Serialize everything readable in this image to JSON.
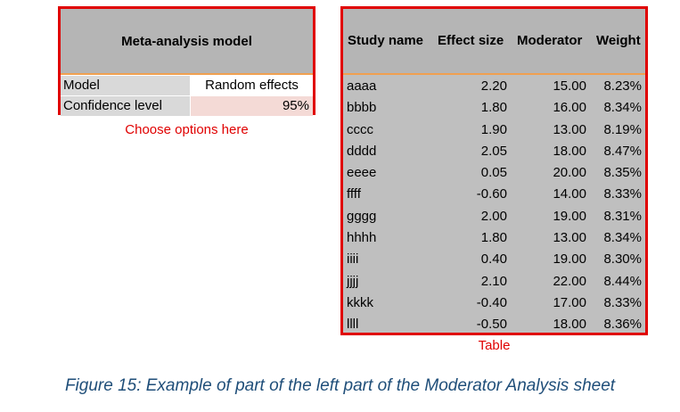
{
  "options": {
    "header": "Meta-analysis model",
    "rows": [
      {
        "label": "Model",
        "value": "Random effects"
      },
      {
        "label": "Confidence level",
        "value": "95%"
      }
    ],
    "caption": "Choose options here"
  },
  "table": {
    "headers": [
      "Study name",
      "Effect size",
      "Moderator",
      "Weight"
    ],
    "rows": [
      {
        "name": "aaaa",
        "effect": "2.20",
        "moderator": "15.00",
        "weight": "8.23%"
      },
      {
        "name": "bbbb",
        "effect": "1.80",
        "moderator": "16.00",
        "weight": "8.34%"
      },
      {
        "name": "cccc",
        "effect": "1.90",
        "moderator": "13.00",
        "weight": "8.19%"
      },
      {
        "name": "dddd",
        "effect": "2.05",
        "moderator": "18.00",
        "weight": "8.47%"
      },
      {
        "name": "eeee",
        "effect": "0.05",
        "moderator": "20.00",
        "weight": "8.35%"
      },
      {
        "name": "ffff",
        "effect": "-0.60",
        "moderator": "14.00",
        "weight": "8.33%"
      },
      {
        "name": "gggg",
        "effect": "2.00",
        "moderator": "19.00",
        "weight": "8.31%"
      },
      {
        "name": "hhhh",
        "effect": "1.80",
        "moderator": "13.00",
        "weight": "8.34%"
      },
      {
        "name": "iiii",
        "effect": "0.40",
        "moderator": "19.00",
        "weight": "8.30%"
      },
      {
        "name": "jjjj",
        "effect": "2.10",
        "moderator": "22.00",
        "weight": "8.44%"
      },
      {
        "name": "kkkk",
        "effect": "-0.40",
        "moderator": "17.00",
        "weight": "8.33%"
      },
      {
        "name": "llll",
        "effect": "-0.50",
        "moderator": "18.00",
        "weight": "8.36%"
      }
    ],
    "caption": "Table"
  },
  "figure_caption": "Figure 15: Example of part of the left part of the Moderator Analysis sheet",
  "colors": {
    "highlight_border": "#e00000",
    "caption_text": "#1f4e79"
  }
}
